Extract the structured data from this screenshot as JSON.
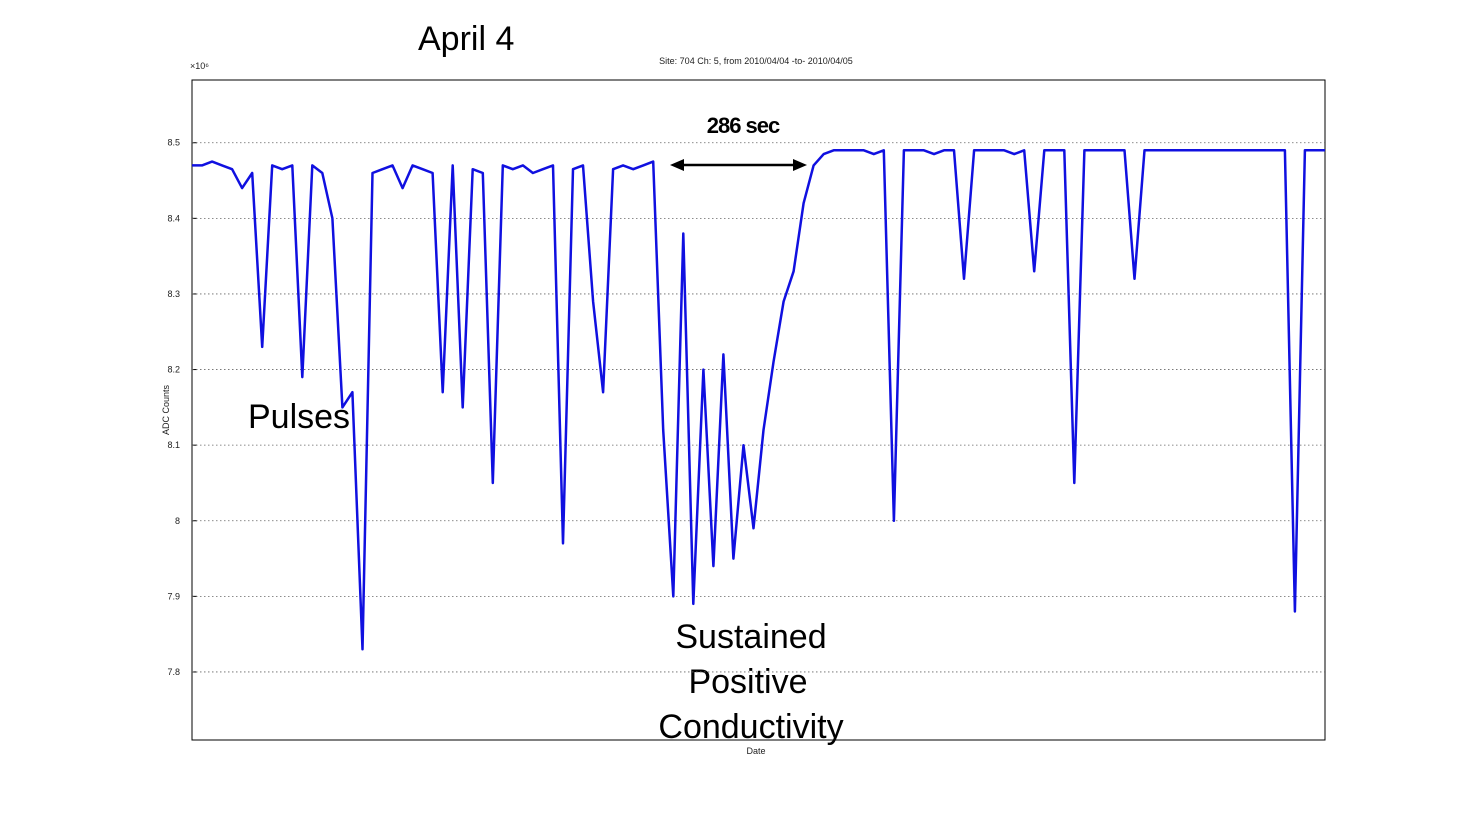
{
  "chart_data": {
    "type": "line",
    "heading": "April 4",
    "title": "Site: 704 Ch: 5, from 2010/04/04 -to- 2010/04/05",
    "ylabel": "ADC Counts",
    "xlabel": "Date",
    "y_exponent": "×10⁶",
    "ylim": [
      7.71,
      8.583
    ],
    "yticks": [
      7.8,
      7.9,
      8,
      8.1,
      8.2,
      8.3,
      8.4,
      8.5
    ],
    "grid": true,
    "annotations": {
      "duration": "286 sec",
      "pulses": "Pulses",
      "sustained": [
        "Sustained",
        "Positive",
        "Conductivity"
      ]
    },
    "series": [
      {
        "color": "#1010e0",
        "values": [
          8.47,
          8.47,
          8.475,
          8.47,
          8.465,
          8.44,
          8.46,
          8.23,
          8.47,
          8.465,
          8.47,
          8.19,
          8.47,
          8.46,
          8.4,
          8.15,
          8.17,
          7.83,
          8.46,
          8.465,
          8.47,
          8.44,
          8.47,
          8.465,
          8.46,
          8.17,
          8.47,
          8.15,
          8.465,
          8.46,
          8.05,
          8.47,
          8.465,
          8.47,
          8.46,
          8.465,
          8.47,
          7.97,
          8.465,
          8.47,
          8.29,
          8.17,
          8.465,
          8.47,
          8.465,
          8.47,
          8.475,
          8.12,
          7.9,
          8.38,
          7.89,
          8.2,
          7.94,
          8.22,
          7.95,
          8.1,
          7.99,
          8.12,
          8.21,
          8.29,
          8.33,
          8.42,
          8.47,
          8.485,
          8.49,
          8.49,
          8.49,
          8.49,
          8.485,
          8.49,
          8.0,
          8.49,
          8.49,
          8.49,
          8.485,
          8.49,
          8.49,
          8.32,
          8.49,
          8.49,
          8.49,
          8.49,
          8.485,
          8.49,
          8.33,
          8.49,
          8.49,
          8.49,
          8.05,
          8.49,
          8.49,
          8.49,
          8.49,
          8.49,
          8.32,
          8.49,
          8.49,
          8.49,
          8.49,
          8.49,
          8.49,
          8.49,
          8.49,
          8.49,
          8.49,
          8.49,
          8.49,
          8.49,
          8.49,
          8.49,
          7.88,
          8.49,
          8.49,
          8.49
        ]
      }
    ]
  }
}
